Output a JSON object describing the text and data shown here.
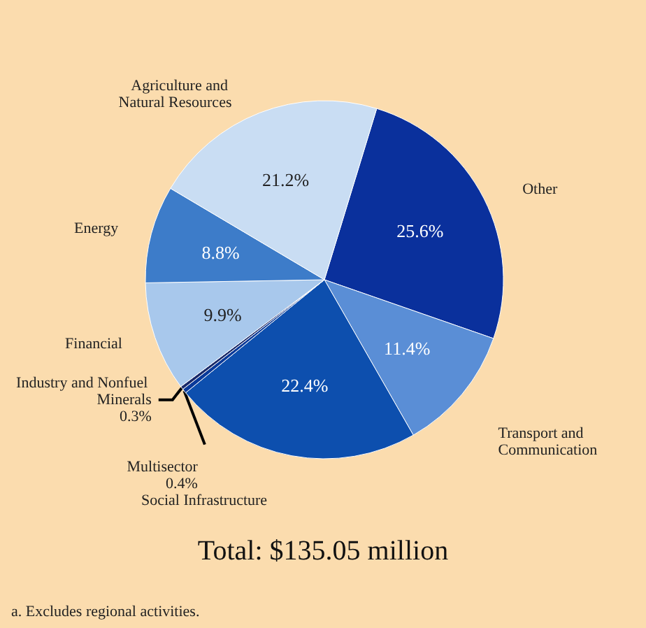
{
  "chart_data": {
    "type": "pie",
    "title": "Total: $135.05 million",
    "categories": [
      "Other",
      "Transport and Communication",
      "Social Infrastructure",
      "Multisector",
      "Industry and Nonfuel Minerals",
      "Financial",
      "Energy",
      "Agriculture and Natural Resources"
    ],
    "values": [
      25.6,
      11.4,
      22.4,
      0.4,
      0.3,
      9.9,
      8.8,
      21.2
    ],
    "value_labels": [
      "25.6%",
      "11.4%",
      "22.4%",
      "0.4%",
      "0.3%",
      "9.9%",
      "8.8%",
      "21.2%"
    ],
    "colors": [
      "#0a309c",
      "#5a8ed6",
      "#0d4fae",
      "#0a3a9a",
      "#1a2a6a",
      "#a8c8ec",
      "#3d7cc9",
      "#c9ddf3"
    ],
    "annotations": [
      "a. Excludes regional activities."
    ],
    "legend": false
  }
}
